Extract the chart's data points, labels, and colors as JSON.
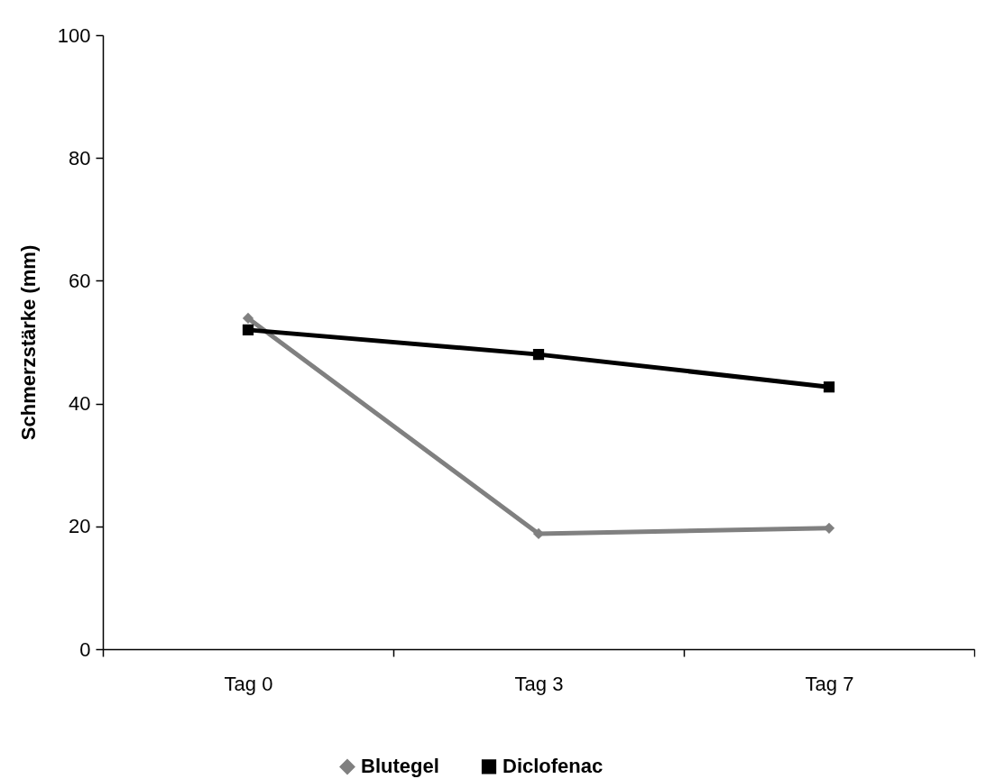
{
  "chart_data": {
    "type": "line",
    "ylabel": "Schmerzstärke (mm)",
    "categories": [
      "Tag 0",
      "Tag 3",
      "Tag 7"
    ],
    "series": [
      {
        "name": "Blutegel",
        "color": "#808080",
        "marker": "diamond",
        "values": [
          53.9,
          18.8,
          19.7
        ]
      },
      {
        "name": "Diclofenac",
        "color": "#000000",
        "marker": "square",
        "values": [
          52.0,
          48.0,
          42.7
        ]
      }
    ],
    "ylim": [
      0,
      100
    ],
    "yticks": [
      0,
      20,
      40,
      60,
      80,
      100
    ],
    "grid": false,
    "legend": "bottom",
    "line_style": "solid"
  }
}
